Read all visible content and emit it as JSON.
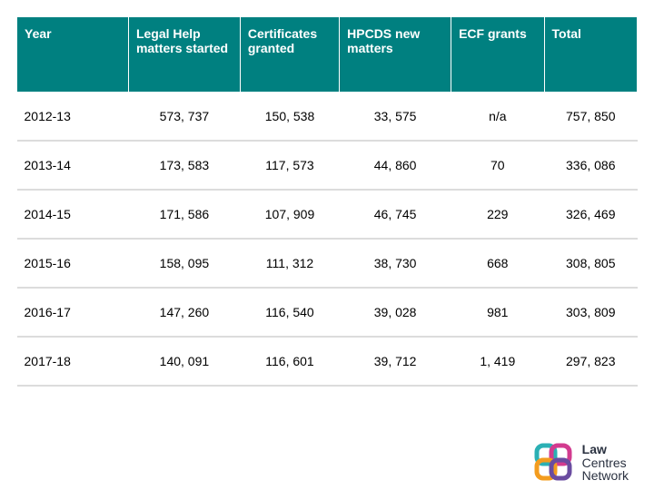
{
  "table": {
    "header_bg": "#008080",
    "header_fg": "#ffffff",
    "row_border_color": "#dcdcdc",
    "columns": [
      {
        "label": "Year",
        "width_pct": 18,
        "hdr_align": "left"
      },
      {
        "label": "Legal Help matters started",
        "width_pct": 18,
        "hdr_align": "left"
      },
      {
        "label": "Certificates granted",
        "width_pct": 16,
        "hdr_align": "left"
      },
      {
        "label": "HPCDS new matters",
        "width_pct": 18,
        "hdr_align": "left"
      },
      {
        "label": "ECF grants",
        "width_pct": 15,
        "hdr_align": "left"
      },
      {
        "label": "Total",
        "width_pct": 15,
        "hdr_align": "left"
      }
    ],
    "rows": [
      {
        "year": "2012-13",
        "v1": "573, 737",
        "v2": "150, 538",
        "v3": "33, 575",
        "v4": "n/a",
        "v5": "757, 850"
      },
      {
        "year": "2013-14",
        "v1": "173, 583",
        "v2": "117, 573",
        "v3": "44, 860",
        "v4": "70",
        "v5": "336, 086"
      },
      {
        "year": "2014-15",
        "v1": "171, 586",
        "v2": "107, 909",
        "v3": "46, 745",
        "v4": "229",
        "v5": "326, 469"
      },
      {
        "year": "2015-16",
        "v1": "158, 095",
        "v2": "111, 312",
        "v3": "38, 730",
        "v4": "668",
        "v5": "308, 805"
      },
      {
        "year": "2016-17",
        "v1": "147, 260",
        "v2": "116, 540",
        "v3": "39, 028",
        "v4": "981",
        "v5": "303, 809"
      },
      {
        "year": "2017-18",
        "v1": "140, 091",
        "v2": "116, 601",
        "v3": "39, 712",
        "v4": "1, 419",
        "v5": "297, 823"
      }
    ]
  },
  "logo": {
    "text_line1": "Law",
    "text_line2": "Centres",
    "text_line3": "Network",
    "text_color": "#2a3140",
    "text_fontsize": 14,
    "colors": {
      "teal": "#2bb0b4",
      "magenta": "#d23b8f",
      "orange": "#f39c1f",
      "purple": "#6a4ca0"
    }
  }
}
